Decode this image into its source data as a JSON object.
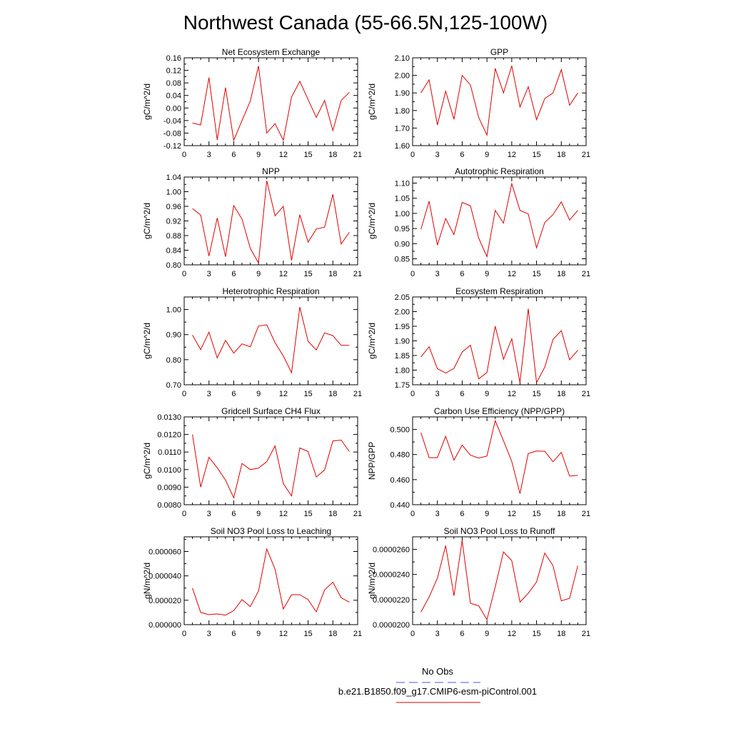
{
  "figure": {
    "title": "Northwest Canada (55-66.5N,125-100W)"
  },
  "legend": {
    "items": [
      {
        "label": "No Obs",
        "color": "#5050e0",
        "dashed": true
      },
      {
        "label": "b.e21.B1850.f09_g17.CMIP6-esm-piControl.001",
        "color": "#e00000",
        "dashed": false
      }
    ]
  },
  "chart_data": [
    {
      "type": "line",
      "title": "Net Ecosystem Exchange",
      "ylabel": "gC/m^2/d",
      "xlim": [
        0,
        21
      ],
      "xticks": [
        0,
        3,
        6,
        9,
        12,
        15,
        18,
        21
      ],
      "ylim": [
        -0.12,
        0.16
      ],
      "yticks": [
        "-0.12",
        "-0.08",
        "-0.04",
        "0.00",
        "0.04",
        "0.08",
        "0.12",
        "0.16"
      ],
      "minor_yticks": [
        -0.1,
        -0.06,
        -0.02,
        0.02,
        0.06,
        0.1,
        0.14
      ],
      "x": [
        1,
        2,
        3,
        4,
        5,
        6,
        7,
        8,
        9,
        10,
        11,
        12,
        13,
        14,
        15,
        16,
        17,
        18,
        19,
        20
      ],
      "series": [
        {
          "color": "#e00000",
          "values": [
            -0.048,
            -0.054,
            0.097,
            -0.102,
            0.065,
            -0.103,
            -0.04,
            0.022,
            0.134,
            -0.08,
            -0.05,
            -0.103,
            0.035,
            0.085,
            0.027,
            -0.03,
            0.024,
            -0.072,
            0.024,
            0.05
          ]
        }
      ]
    },
    {
      "type": "line",
      "title": "GPP",
      "ylabel": "gC/m^2/d",
      "xlim": [
        0,
        21
      ],
      "xticks": [
        0,
        3,
        6,
        9,
        12,
        15,
        18,
        21
      ],
      "ylim": [
        1.6,
        2.1
      ],
      "yticks": [
        "1.60",
        "1.70",
        "1.80",
        "1.90",
        "2.00",
        "2.10"
      ],
      "minor_yticks": [
        1.65,
        1.75,
        1.85,
        1.95,
        2.05
      ],
      "x": [
        1,
        2,
        3,
        4,
        5,
        6,
        7,
        8,
        9,
        10,
        11,
        12,
        13,
        14,
        15,
        16,
        17,
        18,
        19,
        20
      ],
      "series": [
        {
          "color": "#e00000",
          "values": [
            1.9,
            1.975,
            1.718,
            1.91,
            1.75,
            2.0,
            1.945,
            1.76,
            1.66,
            2.04,
            1.9,
            2.055,
            1.82,
            1.935,
            1.748,
            1.868,
            1.9,
            2.032,
            1.83,
            1.9
          ]
        }
      ]
    },
    {
      "type": "line",
      "title": "NPP",
      "ylabel": "gC/m^2/d",
      "xlim": [
        0,
        21
      ],
      "xticks": [
        0,
        3,
        6,
        9,
        12,
        15,
        18,
        21
      ],
      "ylim": [
        0.8,
        1.04
      ],
      "yticks": [
        "0.80",
        "0.84",
        "0.88",
        "0.92",
        "0.96",
        "1.00",
        "1.04"
      ],
      "minor_yticks": [
        0.82,
        0.86,
        0.9,
        0.94,
        0.98,
        1.02
      ],
      "x": [
        1,
        2,
        3,
        4,
        5,
        6,
        7,
        8,
        9,
        10,
        11,
        12,
        13,
        14,
        15,
        16,
        17,
        18,
        19,
        20
      ],
      "series": [
        {
          "color": "#e00000",
          "values": [
            0.954,
            0.936,
            0.824,
            0.928,
            0.822,
            0.962,
            0.925,
            0.845,
            0.805,
            1.03,
            0.934,
            0.96,
            0.812,
            0.937,
            0.862,
            0.898,
            0.903,
            0.993,
            0.857,
            0.889
          ]
        }
      ]
    },
    {
      "type": "line",
      "title": "Autotrophic Respiration",
      "ylabel": "gC/m^2/d",
      "xlim": [
        0,
        21
      ],
      "xticks": [
        0,
        3,
        6,
        9,
        12,
        15,
        18,
        21
      ],
      "ylim": [
        0.83,
        1.12
      ],
      "yticks": [
        "0.85",
        "0.90",
        "0.95",
        "1.00",
        "1.05",
        "1.10"
      ],
      "minor_yticks": [
        0.875,
        0.925,
        0.975,
        1.025,
        1.075
      ],
      "x": [
        1,
        2,
        3,
        4,
        5,
        6,
        7,
        8,
        9,
        10,
        11,
        12,
        13,
        14,
        15,
        16,
        17,
        18,
        19,
        20
      ],
      "series": [
        {
          "color": "#e00000",
          "values": [
            0.947,
            1.04,
            0.895,
            0.983,
            0.93,
            1.036,
            1.025,
            0.918,
            0.857,
            1.01,
            0.968,
            1.098,
            1.01,
            0.998,
            0.886,
            0.97,
            0.996,
            1.038,
            0.978,
            1.01
          ]
        }
      ]
    },
    {
      "type": "line",
      "title": "Heterotrophic Respiration",
      "ylabel": "gC/m^2/d",
      "xlim": [
        0,
        21
      ],
      "xticks": [
        0,
        3,
        6,
        9,
        12,
        15,
        18,
        21
      ],
      "ylim": [
        0.7,
        1.05
      ],
      "yticks": [
        "0.70",
        "0.80",
        "0.90",
        "1.00"
      ],
      "minor_yticks": [
        0.75,
        0.85,
        0.95
      ],
      "x": [
        1,
        2,
        3,
        4,
        5,
        6,
        7,
        8,
        9,
        10,
        11,
        12,
        13,
        14,
        15,
        16,
        17,
        18,
        19,
        20
      ],
      "series": [
        {
          "color": "#e00000",
          "values": [
            0.898,
            0.84,
            0.91,
            0.807,
            0.877,
            0.826,
            0.863,
            0.851,
            0.934,
            0.939,
            0.868,
            0.815,
            0.748,
            1.01,
            0.873,
            0.839,
            0.907,
            0.896,
            0.857,
            0.857
          ]
        }
      ]
    },
    {
      "type": "line",
      "title": "Ecosystem Respiration",
      "ylabel": "gC/m^2/d",
      "xlim": [
        0,
        21
      ],
      "xticks": [
        0,
        3,
        6,
        9,
        12,
        15,
        18,
        21
      ],
      "ylim": [
        1.75,
        2.05
      ],
      "yticks": [
        "1.75",
        "1.80",
        "1.85",
        "1.90",
        "1.95",
        "2.00",
        "2.05"
      ],
      "minor_yticks": [
        1.775,
        1.825,
        1.875,
        1.925,
        1.975,
        2.025
      ],
      "x": [
        1,
        2,
        3,
        4,
        5,
        6,
        7,
        8,
        9,
        10,
        11,
        12,
        13,
        14,
        15,
        16,
        17,
        18,
        19,
        20
      ],
      "series": [
        {
          "color": "#e00000",
          "values": [
            1.845,
            1.88,
            1.805,
            1.79,
            1.806,
            1.862,
            1.885,
            1.77,
            1.792,
            1.95,
            1.837,
            1.907,
            1.757,
            2.01,
            1.757,
            1.81,
            1.905,
            1.935,
            1.835,
            1.868
          ]
        }
      ]
    },
    {
      "type": "line",
      "title": "Gridcell Surface CH4 Flux",
      "ylabel": "gC/m^2/d",
      "xlim": [
        0,
        21
      ],
      "xticks": [
        0,
        3,
        6,
        9,
        12,
        15,
        18,
        21
      ],
      "ylim": [
        0.008,
        0.013
      ],
      "yticks": [
        "0.0080",
        "0.0090",
        "0.0100",
        "0.0110",
        "0.0120",
        "0.0130"
      ],
      "minor_yticks": [
        0.0085,
        0.0095,
        0.0105,
        0.0115,
        0.0125
      ],
      "x": [
        1,
        2,
        3,
        4,
        5,
        6,
        7,
        8,
        9,
        10,
        11,
        12,
        13,
        14,
        15,
        16,
        17,
        18,
        19,
        20
      ],
      "series": [
        {
          "color": "#e00000",
          "values": [
            0.012,
            0.009,
            0.0107,
            0.0101,
            0.0094,
            0.0084,
            0.01035,
            0.01,
            0.01008,
            0.01045,
            0.01135,
            0.0092,
            0.0085,
            0.01123,
            0.01103,
            0.00958,
            0.00998,
            0.01163,
            0.01168,
            0.01103
          ]
        }
      ]
    },
    {
      "type": "line",
      "title": "Carbon Use Efficiency (NPP/GPP)",
      "ylabel": "NPP/GPP",
      "xlim": [
        0,
        21
      ],
      "xticks": [
        0,
        3,
        6,
        9,
        12,
        15,
        18,
        21
      ],
      "ylim": [
        0.44,
        0.51
      ],
      "yticks": [
        "0.440",
        "0.460",
        "0.480",
        "0.500"
      ],
      "minor_yticks": [
        0.45,
        0.47,
        0.49
      ],
      "x": [
        1,
        2,
        3,
        4,
        5,
        6,
        7,
        8,
        9,
        10,
        11,
        12,
        13,
        14,
        15,
        16,
        17,
        18,
        19,
        20
      ],
      "series": [
        {
          "color": "#e00000",
          "values": [
            0.4975,
            0.4775,
            0.4775,
            0.4945,
            0.4755,
            0.4875,
            0.4795,
            0.4772,
            0.4788,
            0.507,
            0.491,
            0.4745,
            0.4488,
            0.4808,
            0.4828,
            0.4826,
            0.4742,
            0.4818,
            0.4628,
            0.4634
          ]
        }
      ]
    },
    {
      "type": "line",
      "title": "Soil NO3 Pool Loss to Leaching",
      "ylabel": "gN/m^2/d",
      "xlim": [
        0,
        21
      ],
      "xticks": [
        0,
        3,
        6,
        9,
        12,
        15,
        18,
        21
      ],
      "ylim": [
        0.0,
        7.2e-05
      ],
      "yticks": [
        "0.000000",
        "0.000020",
        "0.000040",
        "0.000060"
      ],
      "minor_yticks": [
        1e-05,
        3e-05,
        5e-05,
        7e-05
      ],
      "x": [
        1,
        2,
        3,
        4,
        5,
        6,
        7,
        8,
        9,
        10,
        11,
        12,
        13,
        14,
        15,
        16,
        17,
        18,
        19,
        20
      ],
      "series": [
        {
          "color": "#e00000",
          "values": [
            3e-05,
            1e-05,
            8.2e-06,
            8.8e-06,
            7.8e-06,
            1.15e-05,
            2.05e-05,
            1.48e-05,
            2.75e-05,
            6.2e-05,
            4.55e-05,
            1.28e-05,
            2.45e-05,
            2.45e-05,
            2.05e-05,
            1.05e-05,
            2.85e-05,
            3.48e-05,
            2.2e-05,
            1.85e-05
          ]
        }
      ]
    },
    {
      "type": "line",
      "title": "Soil NO3 Pool Loss to Runoff",
      "ylabel": "gN/m^2/d",
      "xlim": [
        0,
        21
      ],
      "xticks": [
        0,
        3,
        6,
        9,
        12,
        15,
        18,
        21
      ],
      "ylim": [
        2e-05,
        2.7e-05
      ],
      "yticks": [
        "0.0000200",
        "0.0000220",
        "0.0000240",
        "0.0000260"
      ],
      "minor_yticks": [
        2.1e-05,
        2.3e-05,
        2.5e-05,
        2.7e-05
      ],
      "x": [
        1,
        2,
        3,
        4,
        5,
        6,
        7,
        8,
        9,
        10,
        11,
        12,
        13,
        14,
        15,
        16,
        17,
        18,
        19,
        20
      ],
      "series": [
        {
          "color": "#e00000",
          "values": [
            2.1e-05,
            2.22e-05,
            2.37e-05,
            2.63e-05,
            2.23e-05,
            2.67e-05,
            2.17e-05,
            2.15e-05,
            2.04e-05,
            2.3e-05,
            2.58e-05,
            2.51e-05,
            2.18e-05,
            2.25e-05,
            2.34e-05,
            2.57e-05,
            2.47e-05,
            2.19e-05,
            2.21e-05,
            2.47e-05
          ]
        }
      ]
    }
  ]
}
